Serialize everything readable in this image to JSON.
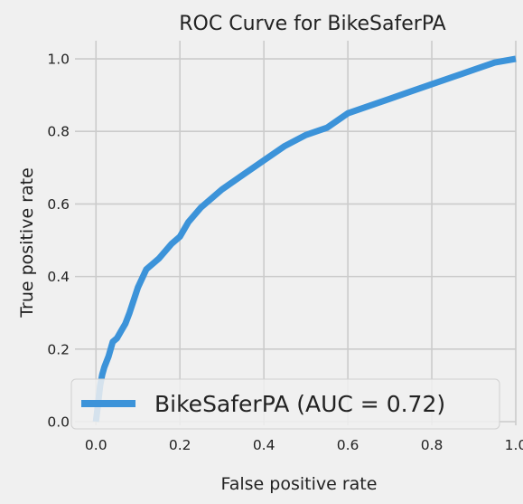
{
  "chart_data": {
    "type": "line",
    "title": "ROC Curve for BikeSaferPA",
    "xlabel": "False positive rate",
    "ylabel": "True positive rate",
    "xlim": [
      -0.05,
      1.0
    ],
    "ylim": [
      -0.01,
      1.05
    ],
    "x_ticks": [
      "0.0",
      "0.2",
      "0.4",
      "0.6",
      "0.8",
      "1.0"
    ],
    "y_ticks": [
      "0.0",
      "0.2",
      "0.4",
      "0.6",
      "0.8",
      "1.0"
    ],
    "grid": true,
    "legend_position": "lower-right",
    "series": [
      {
        "name": "BikeSaferPA (AUC = 0.72)",
        "color": "#3c93d9",
        "x": [
          0.0,
          0.005,
          0.01,
          0.015,
          0.02,
          0.03,
          0.04,
          0.05,
          0.06,
          0.07,
          0.08,
          0.1,
          0.12,
          0.15,
          0.18,
          0.2,
          0.22,
          0.25,
          0.28,
          0.3,
          0.35,
          0.4,
          0.45,
          0.5,
          0.55,
          0.6,
          0.65,
          0.7,
          0.75,
          0.8,
          0.85,
          0.9,
          0.95,
          1.0
        ],
        "y": [
          0.0,
          0.05,
          0.1,
          0.13,
          0.15,
          0.18,
          0.22,
          0.23,
          0.25,
          0.27,
          0.3,
          0.37,
          0.42,
          0.45,
          0.49,
          0.51,
          0.55,
          0.59,
          0.62,
          0.64,
          0.68,
          0.72,
          0.76,
          0.79,
          0.81,
          0.85,
          0.87,
          0.89,
          0.91,
          0.93,
          0.95,
          0.97,
          0.99,
          1.0
        ]
      }
    ]
  }
}
